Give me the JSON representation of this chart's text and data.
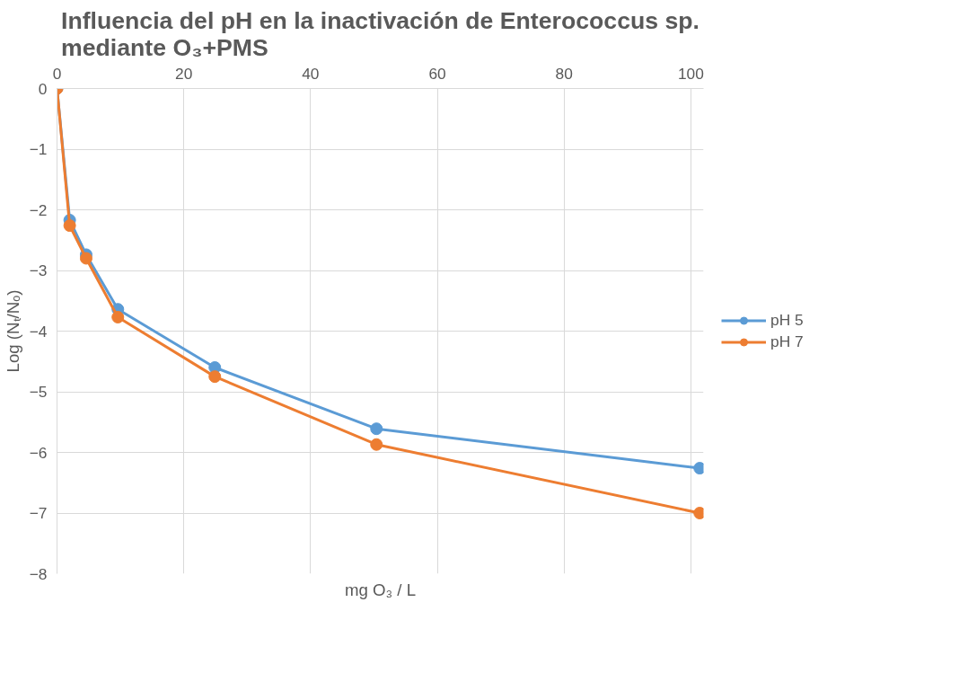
{
  "chart_data": {
    "type": "line",
    "title": "Influencia del pH en la inactivación de Enterococcus sp.\nmediante O₃+PMS",
    "xlabel": "mg O₃ / L",
    "ylabel": "Log (Nₜ/Nₒ)",
    "xlim": [
      0,
      102
    ],
    "xticks": [
      0,
      20,
      40,
      60,
      80,
      100
    ],
    "ylim": [
      -8,
      0
    ],
    "yticks": [
      -8,
      -7,
      -6,
      -5,
      -4,
      -3,
      -2,
      -1,
      0
    ],
    "grid": true,
    "legend": "right",
    "marker": "circle",
    "line_style": "solid",
    "series": [
      {
        "name": "pH 5",
        "color": "#5b9bd5",
        "x": [
          0,
          2,
          4.6,
          9.6,
          24.9,
          50.4,
          101.4
        ],
        "values": [
          0,
          -2.17,
          -2.74,
          -3.64,
          -4.6,
          -5.61,
          -6.26
        ]
      },
      {
        "name": "pH 7",
        "color": "#ed7d31",
        "x": [
          0,
          2,
          4.6,
          9.6,
          24.9,
          50.4,
          101.4
        ],
        "values": [
          0,
          -2.26,
          -2.8,
          -3.77,
          -4.75,
          -5.87,
          -7.0
        ]
      }
    ]
  }
}
